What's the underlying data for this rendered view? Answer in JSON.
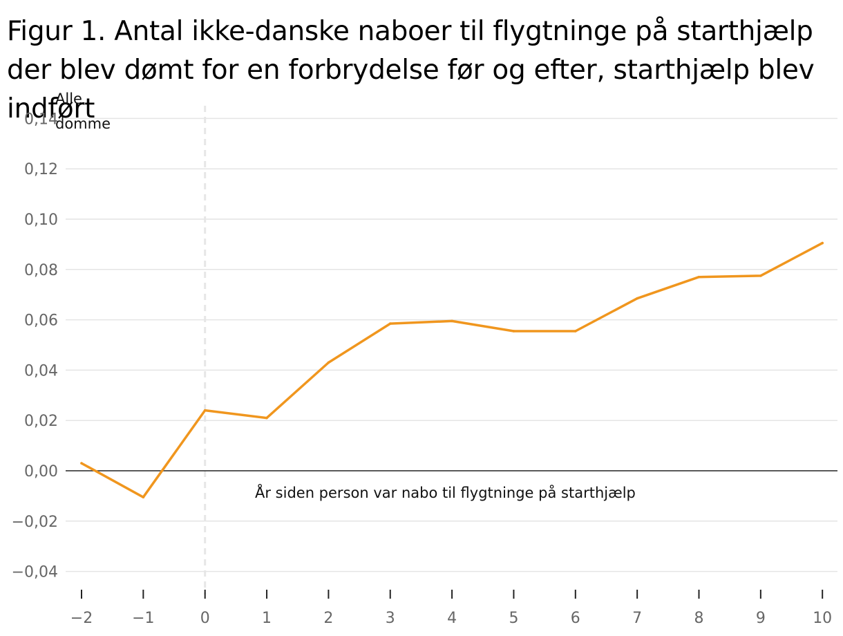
{
  "title": "Figur 1. Antal ikke-danske naboer til flygtninge på starthjælp der blev dømt for en forbrydelse før og efter, starthjælp blev indført",
  "chart_data": {
    "type": "line",
    "title": "Figur 1. Antal ikke-danske naboer til flygtninge på starthjælp der blev dømt for en forbrydelse før og efter, starthjælp blev indført",
    "ylabel_lines": [
      "Alle",
      "domme"
    ],
    "xlabel": "År siden person var nabo til flygtninge på starthjælp",
    "x": [
      -2,
      -1,
      0,
      1,
      2,
      3,
      4,
      5,
      6,
      7,
      8,
      9,
      10
    ],
    "x_tick_labels": [
      "−2",
      "−1",
      "0",
      "1",
      "2",
      "3",
      "4",
      "5",
      "6",
      "7",
      "8",
      "9",
      "10"
    ],
    "y_ticks": [
      0.14,
      0.12,
      0.1,
      0.08,
      0.06,
      0.04,
      0.02,
      0.0,
      -0.02,
      -0.04
    ],
    "y_tick_labels": [
      "0,14",
      "0,12",
      "0,10",
      "0,08",
      "0,06",
      "0,04",
      "0,02",
      "0,00",
      "−0,02",
      "−0,04"
    ],
    "ylim": [
      -0.04,
      0.14
    ],
    "series": [
      {
        "values": [
          0.003,
          -0.0105,
          0.024,
          0.021,
          0.043,
          0.0585,
          0.0595,
          0.0555,
          0.0555,
          0.0685,
          0.077,
          0.0775,
          0.0905
        ]
      }
    ],
    "reference_vline_x": 0,
    "grid": true,
    "colors": {
      "line": "#F0961E",
      "grid": "#E4E4E4",
      "zero": "#222222",
      "vline": "#E6E6E6"
    }
  }
}
